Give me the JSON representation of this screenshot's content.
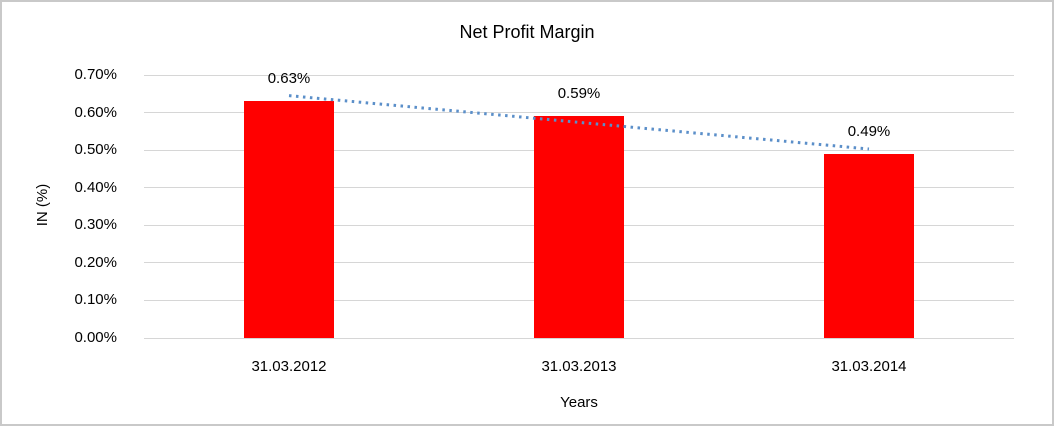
{
  "window": {
    "background_color": "#ffffff",
    "border_color": "#c9c9c9"
  },
  "chart_data": {
    "type": "bar",
    "title": "Net Profit Margin",
    "xlabel": "Years",
    "ylabel": "IN (%)",
    "categories": [
      "31.03.2012",
      "31.03.2013",
      "31.03.2014"
    ],
    "values": [
      0.63,
      0.59,
      0.49
    ],
    "data_labels": [
      "0.63%",
      "0.59%",
      "0.49%"
    ],
    "y_ticks": [
      {
        "label": "0.00%",
        "value": 0.0
      },
      {
        "label": "0.10%",
        "value": 0.1
      },
      {
        "label": "0.20%",
        "value": 0.2
      },
      {
        "label": "0.30%",
        "value": 0.3
      },
      {
        "label": "0.40%",
        "value": 0.4
      },
      {
        "label": "0.50%",
        "value": 0.5
      },
      {
        "label": "0.60%",
        "value": 0.6
      },
      {
        "label": "0.70%",
        "value": 0.7
      }
    ],
    "ylim": [
      0,
      0.7
    ],
    "grid": true,
    "legend": "none",
    "bar_color": "#ff0000",
    "gridline_color": "#d6d6d6",
    "text_color": "#000000",
    "trendline": {
      "type": "linear",
      "style": "dotted",
      "color": "#5b8fc9",
      "start_value": 0.645,
      "end_value": 0.503
    }
  }
}
